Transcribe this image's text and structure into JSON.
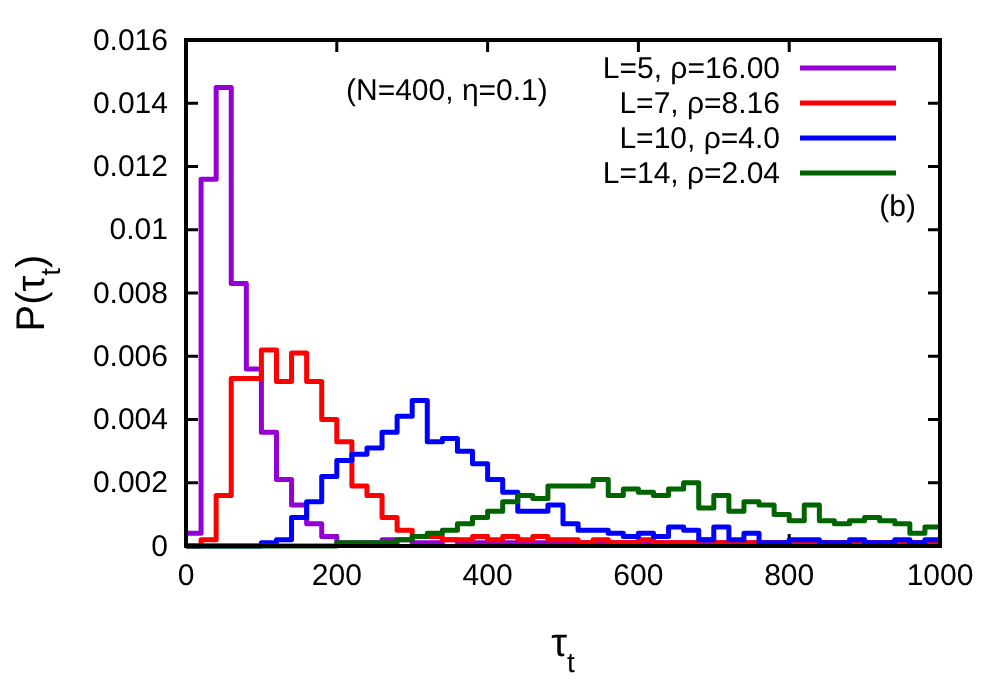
{
  "chart_data": {
    "type": "histogram",
    "xlabel": "τ$_{t}$",
    "ylabel": "P(τ$_{t}$)",
    "bins": [
      0,
      20,
      40,
      60,
      80,
      100,
      120,
      140,
      160,
      180,
      200,
      220,
      240,
      260,
      280,
      300,
      320,
      340,
      360,
      380,
      400,
      420,
      440,
      460,
      480,
      500,
      520,
      540,
      560,
      580,
      600,
      620,
      640,
      660,
      680,
      700,
      720,
      740,
      760,
      780,
      800,
      820,
      840,
      860,
      880,
      900,
      920,
      940,
      960,
      980,
      1000
    ],
    "series": [
      {
        "name": "L=5, ρ=16.00",
        "color": "#9400d3",
        "values": [
          0.0004,
          0.0116,
          0.0145,
          0.0083,
          0.0056,
          0.0036,
          0.0021,
          0.0013,
          0.0007,
          0.0003,
          0.0001,
          0.0001,
          0.0001,
          0.0002,
          0.0002,
          0.0001,
          0.0001,
          0.0002,
          0.0001,
          0.0001,
          0.0001,
          0.0001,
          0.0001,
          0.0001,
          0.0001,
          0.0001,
          0.0001,
          0.0001,
          0.0001,
          0.0001,
          0.0001,
          0.0001,
          0.0001,
          0.0001,
          0.0001,
          0.0001,
          0.0001,
          0.0001,
          0.0001,
          0.0001,
          0.0001,
          0.0001,
          0.0001,
          0.0001,
          0.0001,
          0.0001,
          0.0001,
          0.0001,
          0.0001,
          0.0001
        ]
      },
      {
        "name": "L=7, ρ=8.16",
        "color": "#ff0000",
        "values": [
          0,
          0.0002,
          0.0016,
          0.0053,
          0.0053,
          0.0062,
          0.0052,
          0.0061,
          0.0052,
          0.004,
          0.0033,
          0.0019,
          0.0016,
          0.0009,
          0.0005,
          0.0003,
          0.0003,
          0.0002,
          0.0002,
          0.0003,
          0.0002,
          0.0003,
          0.0002,
          0.0003,
          0.0002,
          0.0002,
          0.0001,
          0.0002,
          0.0001,
          0.0001,
          0.0002,
          0.0001,
          0.0001,
          0.0001,
          0.0002,
          0.0001,
          0.0001,
          0.0001,
          0.0001,
          0.0001,
          0.0001,
          0.0001,
          0.0001,
          0.0001,
          0.0001,
          0.0001,
          0.0001,
          0.0001,
          0.0001,
          0.0001
        ]
      },
      {
        "name": "L=10, ρ=4.0",
        "color": "#0000ff",
        "values": [
          0,
          0,
          0,
          0,
          0,
          0.0001,
          0.0002,
          0.0009,
          0.0014,
          0.0022,
          0.0027,
          0.0029,
          0.0031,
          0.0036,
          0.0041,
          0.0046,
          0.0033,
          0.0034,
          0.003,
          0.0026,
          0.0021,
          0.0017,
          0.0011,
          0.0011,
          0.0013,
          0.0007,
          0.0005,
          0.0005,
          0.0004,
          0.0003,
          0.0004,
          0.0003,
          0.0006,
          0.0005,
          0.0002,
          0.0006,
          0.0002,
          0.0004,
          0.0001,
          0.0001,
          0.0002,
          0.0002,
          0.0001,
          0.0001,
          0.0002,
          0.0001,
          0.0001,
          0.0002,
          0.0001,
          0.0002
        ]
      },
      {
        "name": "L=14, ρ=2.04",
        "color": "#006400",
        "values": [
          0,
          0,
          0,
          0,
          0,
          0,
          0,
          0,
          0,
          0,
          0.0001,
          0.0001,
          0.0001,
          0.0001,
          0.0002,
          0.0003,
          0.0004,
          0.0005,
          0.0007,
          0.0009,
          0.0011,
          0.0014,
          0.0016,
          0.0015,
          0.0019,
          0.0019,
          0.0019,
          0.0021,
          0.0016,
          0.0018,
          0.0017,
          0.0016,
          0.0018,
          0.002,
          0.0012,
          0.0016,
          0.0011,
          0.0014,
          0.0013,
          0.001,
          0.0008,
          0.0013,
          0.0008,
          0.0007,
          0.0008,
          0.0009,
          0.0008,
          0.0007,
          0.0004,
          0.0006
        ]
      }
    ],
    "xlim": [
      0,
      1000
    ],
    "xticks": [
      0,
      200,
      400,
      600,
      800,
      1000
    ],
    "ylim": [
      0,
      0.016
    ],
    "yticks": [
      0,
      0.002,
      0.004,
      0.006,
      0.008,
      0.01,
      0.012,
      0.014,
      0.016
    ],
    "legend": "top right",
    "grid": false,
    "annotations": [
      "(N=400, η=0.1)",
      "(b)"
    ]
  }
}
